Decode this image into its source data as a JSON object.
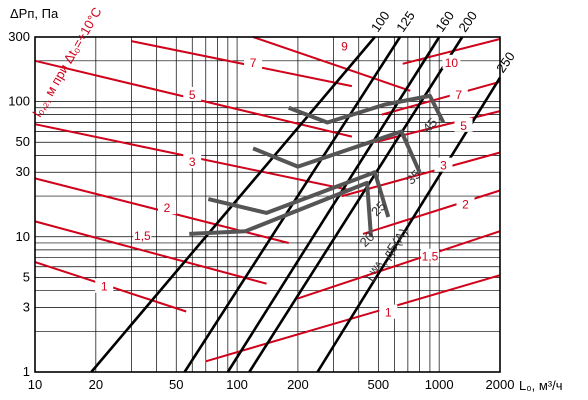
{
  "chart_data": {
    "type": "line",
    "xlabel": "L₀, м³/ч",
    "ylabel": "ΔPп, Па",
    "xscale": "log",
    "yscale": "log",
    "xlim": [
      10,
      2000
    ],
    "ylim": [
      1,
      300
    ],
    "x_ticks": [
      10,
      20,
      50,
      100,
      200,
      500,
      1000,
      2000
    ],
    "x_tick_labels": [
      "10",
      "20",
      "50",
      "100",
      "200",
      "500",
      "1000",
      "2000"
    ],
    "y_ticks": [
      1,
      3,
      5,
      10,
      30,
      50,
      100,
      300
    ],
    "y_tick_labels": [
      "1",
      "3",
      "5",
      "10",
      "30",
      "50",
      "100",
      "300"
    ],
    "grid": true,
    "red_annotation": "l₀,₂, м при Δt₀=+10°C",
    "noise_label": "Lᵂᴬ, дБ(A)",
    "size_series": [
      {
        "name": "100",
        "points": [
          [
            19,
            1
          ],
          [
            480,
            300
          ]
        ]
      },
      {
        "name": "125",
        "points": [
          [
            55,
            1
          ],
          [
            640,
            300
          ]
        ]
      },
      {
        "name": "160",
        "points": [
          [
            90,
            1
          ],
          [
            1000,
            300
          ]
        ]
      },
      {
        "name": "200",
        "points": [
          [
            115,
            1
          ],
          [
            1300,
            300
          ]
        ]
      },
      {
        "name": "250",
        "points": [
          [
            250,
            1
          ],
          [
            2000,
            150
          ]
        ]
      }
    ],
    "throw_series": [
      {
        "name": "9",
        "points": [
          [
            120,
            300
          ],
          [
            720,
            120
          ]
        ],
        "label_x": 340,
        "label_y": 250
      },
      {
        "name": "7",
        "points": [
          [
            30,
            280
          ],
          [
            370,
            130
          ]
        ],
        "label_x": 120,
        "label_y": 190
      },
      {
        "name": "5",
        "points": [
          [
            10,
            200
          ],
          [
            370,
            55
          ]
        ],
        "label_x": 60,
        "label_y": 110
      },
      {
        "name": "3",
        "points": [
          [
            10,
            68
          ],
          [
            370,
            22
          ]
        ],
        "label_x": 60,
        "label_y": 35
      },
      {
        "name": "2",
        "points": [
          [
            10,
            27
          ],
          [
            180,
            9
          ]
        ],
        "label_x": 45,
        "label_y": 16
      },
      {
        "name": "1,5",
        "points": [
          [
            10,
            13
          ],
          [
            140,
            4.5
          ]
        ],
        "label_x": 34,
        "label_y": 10
      },
      {
        "name": "1",
        "points": [
          [
            10,
            6.5
          ],
          [
            56,
            2.8
          ]
        ],
        "label_x": 22,
        "label_y": 4.2
      },
      {
        "name": "10",
        "points": [
          [
            660,
            190
          ],
          [
            2000,
            290
          ]
        ],
        "label_x": 1150,
        "label_y": 190
      },
      {
        "name": "7",
        "points": [
          [
            520,
            80
          ],
          [
            2000,
            140
          ]
        ],
        "label_x": 1250,
        "label_y": 110
      },
      {
        "name": "5",
        "points": [
          [
            480,
            50
          ],
          [
            2000,
            85
          ]
        ],
        "label_x": 1320,
        "label_y": 65
      },
      {
        "name": "3",
        "points": [
          [
            330,
            20
          ],
          [
            2000,
            42
          ]
        ],
        "label_x": 1050,
        "label_y": 33
      },
      {
        "name": "2",
        "points": [
          [
            420,
            10.5
          ],
          [
            2000,
            22
          ]
        ],
        "label_x": 1350,
        "label_y": 17
      },
      {
        "name": "1,5",
        "points": [
          [
            200,
            3.5
          ],
          [
            2000,
            11
          ]
        ],
        "label_x": 900,
        "label_y": 7
      },
      {
        "name": "1",
        "points": [
          [
            70,
            1.2
          ],
          [
            2000,
            5.2
          ]
        ],
        "label_x": 560,
        "label_y": 2.7
      }
    ],
    "noise_series": [
      {
        "name": "45",
        "points": [
          [
            180,
            90
          ],
          [
            280,
            70
          ],
          [
            540,
            95
          ],
          [
            900,
            110
          ],
          [
            1050,
            70
          ]
        ],
        "label_x": 880,
        "label_y": 58
      },
      {
        "name": "35",
        "points": [
          [
            120,
            45
          ],
          [
            200,
            33
          ],
          [
            650,
            60
          ],
          [
            800,
            30
          ]
        ],
        "label_x": 730,
        "label_y": 24
      },
      {
        "name": "25",
        "points": [
          [
            72,
            19
          ],
          [
            140,
            15
          ],
          [
            480,
            30
          ],
          [
            560,
            14
          ]
        ],
        "label_x": 490,
        "label_y": 14
      },
      {
        "name": "20",
        "points": [
          [
            58,
            10.5
          ],
          [
            110,
            11
          ],
          [
            440,
            25
          ],
          [
            460,
            10
          ]
        ],
        "label_x": 430,
        "label_y": 8.3
      }
    ]
  }
}
